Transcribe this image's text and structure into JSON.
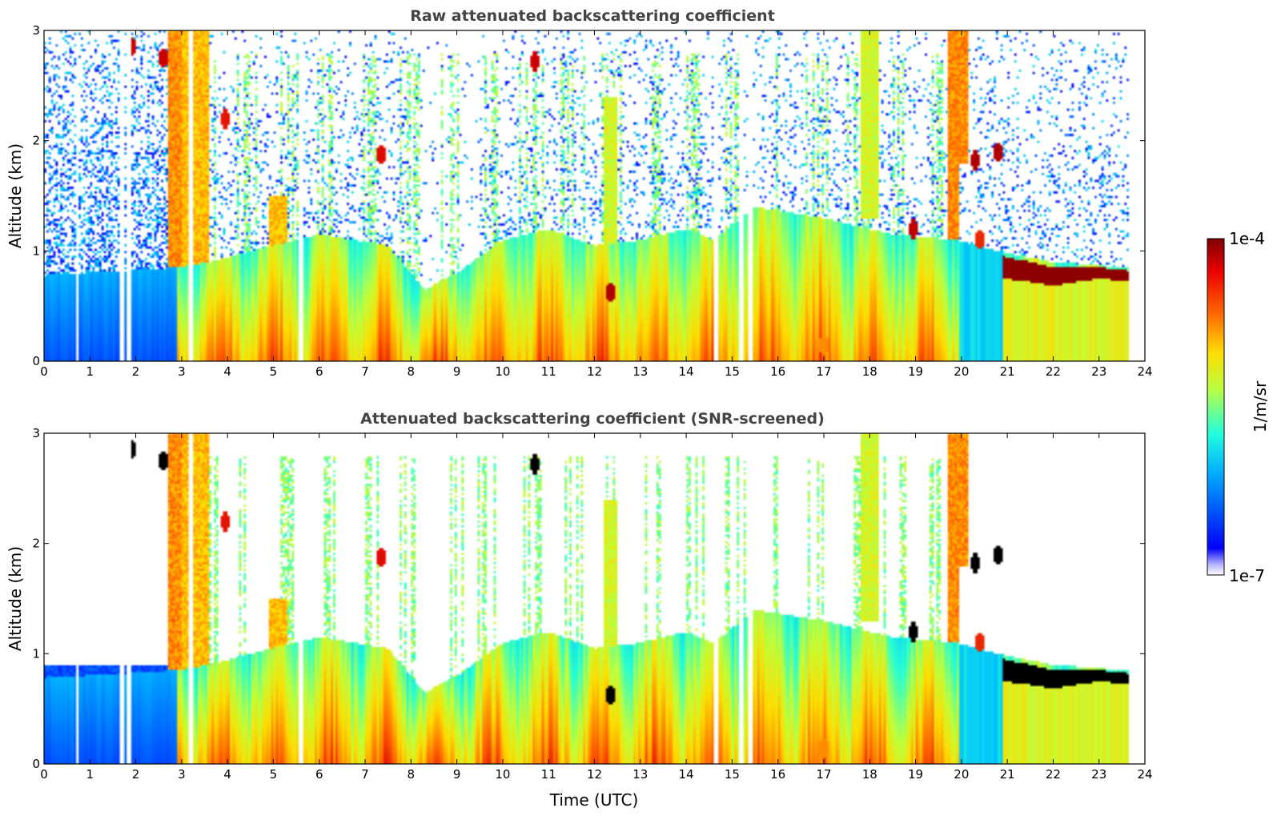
{
  "chart_data": [
    {
      "type": "heatmap",
      "title": "Raw attenuated backscattering coefficient",
      "xlabel": "",
      "ylabel": "Altitude (km)",
      "xlim": [
        0,
        24
      ],
      "ylim": [
        0,
        3
      ],
      "x_ticks": [
        "0",
        "1",
        "2",
        "3",
        "4",
        "5",
        "6",
        "7",
        "8",
        "9",
        "10",
        "11",
        "12",
        "13",
        "14",
        "15",
        "16",
        "17",
        "18",
        "19",
        "20",
        "21",
        "22",
        "23",
        "24"
      ],
      "y_ticks": [
        "0",
        "1",
        "2",
        "3"
      ],
      "data_end_time": 23.65,
      "screened": false
    },
    {
      "type": "heatmap",
      "title": "Attenuated backscattering coefficient (SNR-screened)",
      "xlabel": "Time (UTC)",
      "ylabel": "Altitude (km)",
      "xlim": [
        0,
        24
      ],
      "ylim": [
        0,
        3
      ],
      "x_ticks": [
        "0",
        "1",
        "2",
        "3",
        "4",
        "5",
        "6",
        "7",
        "8",
        "9",
        "10",
        "11",
        "12",
        "13",
        "14",
        "15",
        "16",
        "17",
        "18",
        "19",
        "20",
        "21",
        "22",
        "23",
        "24"
      ],
      "y_ticks": [
        "0",
        "1",
        "2",
        "3"
      ],
      "data_end_time": 23.65,
      "screened": true
    }
  ],
  "colorbar": {
    "label": "1/m/sr",
    "min_label": "1e-7",
    "max_label": "1e-4",
    "scale": "log",
    "colormap": "jet"
  },
  "features": {
    "boundary_layer_top_km": [
      [
        0,
        0.78
      ],
      [
        2.9,
        0.85
      ],
      [
        3.6,
        0.9
      ],
      [
        4.5,
        1.0
      ],
      [
        6,
        1.15
      ],
      [
        7.5,
        1.05
      ],
      [
        8.3,
        0.65
      ],
      [
        9,
        0.8
      ],
      [
        10,
        1.1
      ],
      [
        11,
        1.2
      ],
      [
        12,
        1.05
      ],
      [
        13,
        1.1
      ],
      [
        14,
        1.2
      ],
      [
        14.6,
        1.1
      ],
      [
        15.5,
        1.4
      ],
      [
        17,
        1.3
      ],
      [
        18.5,
        1.15
      ],
      [
        19.9,
        1.1
      ],
      [
        20.8,
        1.0
      ],
      [
        22,
        0.9
      ],
      [
        23.65,
        0.85
      ]
    ],
    "cloud_base_top_km": [
      [
        20.9,
        0.75,
        0.95
      ],
      [
        21.5,
        0.72,
        0.9
      ],
      [
        22.0,
        0.68,
        0.85
      ],
      [
        22.5,
        0.72,
        0.85
      ],
      [
        23.0,
        0.75,
        0.85
      ],
      [
        23.65,
        0.72,
        0.82
      ]
    ],
    "blank_time_columns_h": [
      0.72,
      1.7,
      1.85,
      3.2,
      5.6,
      14.65,
      15.2,
      15.4
    ],
    "plumes": [
      {
        "t0": 2.7,
        "t1": 3.0,
        "a0": 0,
        "a1": 3,
        "level": 0.85
      },
      {
        "t0": 3.0,
        "t1": 3.6,
        "a0": 0,
        "a1": 3,
        "level": 0.8
      },
      {
        "t0": 4.9,
        "t1": 5.3,
        "a0": 0,
        "a1": 1.5,
        "level": 0.8
      },
      {
        "t0": 12.2,
        "t1": 12.5,
        "a0": 0,
        "a1": 2.4,
        "level": 0.7
      },
      {
        "t0": 17.8,
        "t1": 18.2,
        "a0": 1.3,
        "a1": 3,
        "level": 0.7
      },
      {
        "t0": 19.7,
        "t1": 19.95,
        "a0": 0,
        "a1": 3,
        "level": 0.85
      },
      {
        "t0": 19.95,
        "t1": 20.15,
        "a0": 1.8,
        "a1": 3,
        "level": 0.85
      }
    ],
    "aerosol_patches": [
      {
        "t": 1.9,
        "a": 2.85,
        "level": 0.95
      },
      {
        "t": 2.6,
        "a": 2.75,
        "level": 0.95
      },
      {
        "t": 3.95,
        "a": 2.2,
        "level": 0.92
      },
      {
        "t": 7.35,
        "a": 1.88,
        "level": 0.93
      },
      {
        "t": 10.7,
        "a": 2.72,
        "level": 0.95
      },
      {
        "t": 12.35,
        "a": 0.62,
        "level": 0.97
      },
      {
        "t": 17.0,
        "a": 0.15,
        "level": 0.8
      },
      {
        "t": 18.95,
        "a": 1.2,
        "level": 0.96
      },
      {
        "t": 20.3,
        "a": 1.82,
        "level": 0.97
      },
      {
        "t": 20.8,
        "a": 1.9,
        "level": 0.97
      },
      {
        "t": 20.4,
        "a": 1.1,
        "level": 0.9
      }
    ]
  }
}
